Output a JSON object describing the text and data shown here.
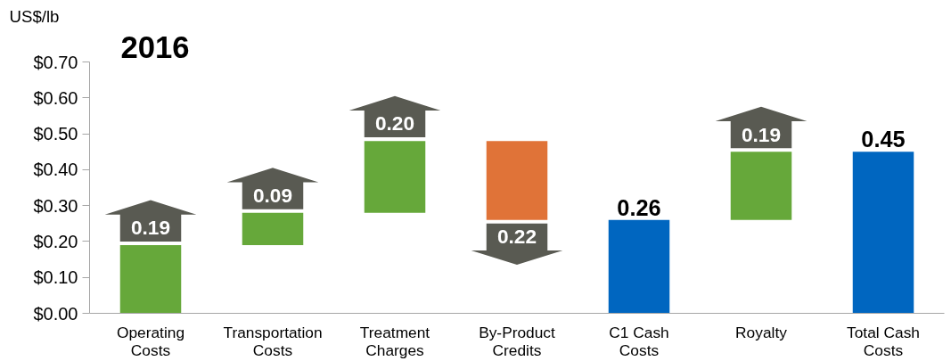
{
  "chart_data": {
    "type": "bar",
    "title": "2016",
    "ylabel": "US$/lb",
    "categories": [
      "Operating Costs",
      "Transportation Costs",
      "Treatment Charges",
      "By-Product Credits",
      "C1 Cash Costs",
      "Royalty",
      "Total Cash Costs"
    ],
    "values": [
      0.19,
      0.09,
      0.2,
      -0.22,
      0.26,
      0.19,
      0.45
    ],
    "base": [
      0,
      0.19,
      0.28,
      0.48,
      null,
      0.26,
      null
    ],
    "colors": [
      "#66a83a",
      "#66a83a",
      "#66a83a",
      "#e07338",
      "#0066c0",
      "#66a83a",
      "#0066c0"
    ],
    "value_labels": [
      "0.19",
      "0.09",
      "0.20",
      "0.22",
      "0.26",
      "0.19",
      "0.45"
    ],
    "ylim": [
      0,
      0.7
    ],
    "yticks": [
      {
        "value": 0,
        "label": "$0.00"
      },
      {
        "value": 0.1,
        "label": "$0.10"
      },
      {
        "value": 0.2,
        "label": "$0.20"
      },
      {
        "value": 0.3,
        "label": "$0.30"
      },
      {
        "value": 0.4,
        "label": "$0.40"
      },
      {
        "value": 0.5,
        "label": "$0.50"
      },
      {
        "value": 0.6,
        "label": "$0.60"
      },
      {
        "value": 0.7,
        "label": "$0.70"
      }
    ],
    "grid": false
  }
}
